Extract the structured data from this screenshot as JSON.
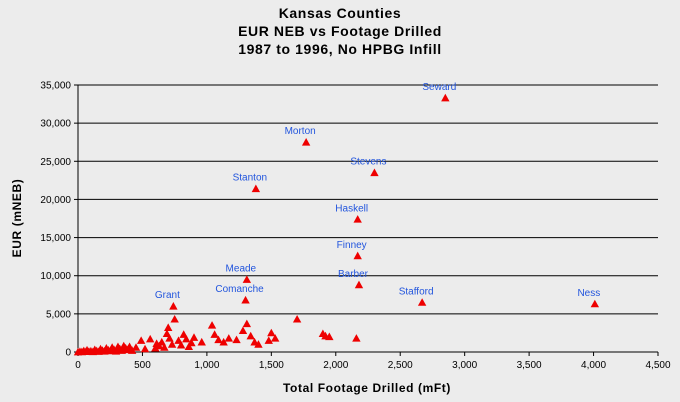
{
  "chart_data": {
    "type": "scatter",
    "title_lines": [
      "Kansas Counties",
      "EUR NEB vs Footage Drilled",
      "1987 to 1996, No HPBG Infill"
    ],
    "xlabel": "Total Footage Drilled (mFt)",
    "ylabel": "EUR (mNEB)",
    "xlim": [
      0,
      4500
    ],
    "ylim": [
      0,
      35000
    ],
    "x_ticks": [
      0,
      500,
      1000,
      1500,
      2000,
      2500,
      3000,
      3500,
      4000,
      4500
    ],
    "x_tick_labels": [
      "0",
      "500",
      "1,000",
      "1,500",
      "2,000",
      "2,500",
      "3,000",
      "3,500",
      "4,000",
      "4,500"
    ],
    "y_ticks": [
      0,
      5000,
      10000,
      15000,
      20000,
      25000,
      30000,
      35000
    ],
    "y_tick_labels": [
      "0",
      "5,000",
      "10,000",
      "15,000",
      "20,000",
      "25,000",
      "30,000",
      "35,000"
    ],
    "grid": "horizontal",
    "marker_color": "#ee0000",
    "label_color": "#2255dd",
    "labeled_points": [
      {
        "label": "Seward",
        "x": 2850,
        "y": 33300
      },
      {
        "label": "Morton",
        "x": 1770,
        "y": 27500
      },
      {
        "label": "Stevens",
        "x": 2300,
        "y": 23500
      },
      {
        "label": "Stanton",
        "x": 1380,
        "y": 21400
      },
      {
        "label": "Haskell",
        "x": 2170,
        "y": 17400
      },
      {
        "label": "Finney",
        "x": 2170,
        "y": 12600
      },
      {
        "label": "Meade",
        "x": 1310,
        "y": 9500
      },
      {
        "label": "Barber",
        "x": 2180,
        "y": 8800
      },
      {
        "label": "Comanche",
        "x": 1300,
        "y": 6800
      },
      {
        "label": "Stafford",
        "x": 2670,
        "y": 6500
      },
      {
        "label": "Ness",
        "x": 4010,
        "y": 6300
      },
      {
        "label": "Grant",
        "x": 740,
        "y": 6000
      }
    ],
    "unlabeled_points": [
      {
        "x": 0,
        "y": 0
      },
      {
        "x": 15,
        "y": 60
      },
      {
        "x": 30,
        "y": 20
      },
      {
        "x": 45,
        "y": 150
      },
      {
        "x": 60,
        "y": 40
      },
      {
        "x": 70,
        "y": 250
      },
      {
        "x": 85,
        "y": 80
      },
      {
        "x": 100,
        "y": 120
      },
      {
        "x": 115,
        "y": 30
      },
      {
        "x": 130,
        "y": 300
      },
      {
        "x": 145,
        "y": 150
      },
      {
        "x": 160,
        "y": 60
      },
      {
        "x": 175,
        "y": 400
      },
      {
        "x": 190,
        "y": 200
      },
      {
        "x": 205,
        "y": 100
      },
      {
        "x": 220,
        "y": 500
      },
      {
        "x": 235,
        "y": 250
      },
      {
        "x": 250,
        "y": 150
      },
      {
        "x": 265,
        "y": 600
      },
      {
        "x": 280,
        "y": 300
      },
      {
        "x": 295,
        "y": 100
      },
      {
        "x": 310,
        "y": 700
      },
      {
        "x": 325,
        "y": 400
      },
      {
        "x": 340,
        "y": 200
      },
      {
        "x": 355,
        "y": 800
      },
      {
        "x": 370,
        "y": 500
      },
      {
        "x": 385,
        "y": 300
      },
      {
        "x": 400,
        "y": 700
      },
      {
        "x": 420,
        "y": 200
      },
      {
        "x": 450,
        "y": 600
      },
      {
        "x": 490,
        "y": 1500
      },
      {
        "x": 520,
        "y": 400
      },
      {
        "x": 560,
        "y": 1700
      },
      {
        "x": 600,
        "y": 500
      },
      {
        "x": 610,
        "y": 1100
      },
      {
        "x": 630,
        "y": 800
      },
      {
        "x": 650,
        "y": 1300
      },
      {
        "x": 670,
        "y": 600
      },
      {
        "x": 690,
        "y": 2400
      },
      {
        "x": 700,
        "y": 3200
      },
      {
        "x": 710,
        "y": 1800
      },
      {
        "x": 730,
        "y": 1000
      },
      {
        "x": 750,
        "y": 4300
      },
      {
        "x": 780,
        "y": 1500
      },
      {
        "x": 800,
        "y": 900
      },
      {
        "x": 820,
        "y": 2300
      },
      {
        "x": 840,
        "y": 1700
      },
      {
        "x": 860,
        "y": 700
      },
      {
        "x": 880,
        "y": 1200
      },
      {
        "x": 900,
        "y": 1900
      },
      {
        "x": 960,
        "y": 1300
      },
      {
        "x": 1040,
        "y": 3500
      },
      {
        "x": 1060,
        "y": 2300
      },
      {
        "x": 1090,
        "y": 1600
      },
      {
        "x": 1130,
        "y": 1300
      },
      {
        "x": 1170,
        "y": 1800
      },
      {
        "x": 1230,
        "y": 1600
      },
      {
        "x": 1280,
        "y": 2800
      },
      {
        "x": 1310,
        "y": 3700
      },
      {
        "x": 1340,
        "y": 2100
      },
      {
        "x": 1370,
        "y": 1300
      },
      {
        "x": 1400,
        "y": 1000
      },
      {
        "x": 1480,
        "y": 1500
      },
      {
        "x": 1500,
        "y": 2500
      },
      {
        "x": 1530,
        "y": 1800
      },
      {
        "x": 1700,
        "y": 4300
      },
      {
        "x": 1900,
        "y": 2400
      },
      {
        "x": 1920,
        "y": 2100
      },
      {
        "x": 1950,
        "y": 2000
      },
      {
        "x": 2160,
        "y": 1800
      }
    ]
  }
}
